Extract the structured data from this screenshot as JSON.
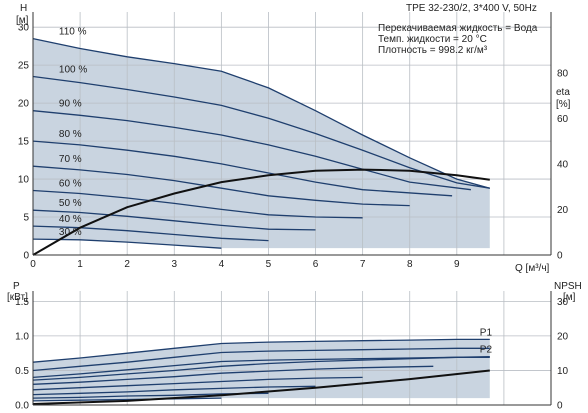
{
  "header": {
    "title": "TPE 32-230/2, 3*400 V, 50Hz",
    "info": [
      "Перекачиваемая жидкость = Вода",
      "Темп. жидкости = 20 °C",
      "Плотность = 998.2 кг/м³"
    ]
  },
  "axes": {
    "top_left_symbol": "H",
    "top_left_unit": "[м]",
    "top_right_symbol": "eta",
    "top_right_unit": "[%]",
    "x_label": "Q [м³/ч]",
    "bottom_left_symbol": "P",
    "bottom_left_unit": "[кВт]",
    "bottom_right_symbol": "NPSH",
    "bottom_right_unit": "[м]"
  },
  "chart_data": [
    {
      "type": "line",
      "panel": "head",
      "xlim": [
        0,
        11
      ],
      "ylim": [
        0,
        32
      ],
      "y2lim": [
        0,
        106.7
      ],
      "xticks": [
        "0",
        "1",
        "2",
        "3",
        "4",
        "5",
        "6",
        "7",
        "8",
        "9"
      ],
      "yticks": [
        "0",
        "5",
        "10",
        "15",
        "20",
        "25",
        "30"
      ],
      "y2ticks": [
        "0",
        "20",
        "40",
        "60",
        "80"
      ],
      "grid": true,
      "series": [
        {
          "name": "110 %",
          "x": [
            0,
            1,
            2,
            3,
            4,
            5,
            6,
            7,
            8,
            9,
            9.7
          ],
          "y": [
            28.5,
            27.2,
            26.1,
            25.2,
            24.2,
            22,
            19,
            15.8,
            12.8,
            10,
            8.8
          ]
        },
        {
          "name": "100 %",
          "x": [
            0,
            1,
            2,
            3,
            4,
            5,
            6,
            7,
            8,
            9,
            9.7
          ],
          "y": [
            23.5,
            22.7,
            21.8,
            20.8,
            19.7,
            18,
            16,
            13.8,
            11.5,
            9.5,
            8.8
          ]
        },
        {
          "name": "90 %",
          "x": [
            0,
            1,
            2,
            3,
            4,
            5,
            6,
            7,
            8,
            9.3
          ],
          "y": [
            19,
            18.4,
            17.7,
            16.8,
            15.8,
            14.5,
            13,
            11.3,
            9.6,
            8.6
          ]
        },
        {
          "name": "80 %",
          "x": [
            0,
            1,
            2,
            3,
            4,
            5,
            6,
            7,
            8.9
          ],
          "y": [
            15,
            14.5,
            13.8,
            13,
            12,
            10.8,
            9.6,
            8.6,
            7.8
          ]
        },
        {
          "name": "70 %",
          "x": [
            0,
            1,
            2,
            3,
            4,
            5,
            6,
            7,
            8
          ],
          "y": [
            11.7,
            11.2,
            10.6,
            9.8,
            8.8,
            7.8,
            7.2,
            6.7,
            6.5
          ]
        },
        {
          "name": "60 %",
          "x": [
            0,
            1,
            2,
            3,
            4,
            5,
            6,
            7
          ],
          "y": [
            8.5,
            8.1,
            7.5,
            6.8,
            6,
            5.3,
            5,
            4.9
          ]
        },
        {
          "name": "50 %",
          "x": [
            0,
            1,
            2,
            3,
            4,
            5,
            6
          ],
          "y": [
            5.9,
            5.6,
            5.1,
            4.5,
            3.9,
            3.4,
            3.3
          ]
        },
        {
          "name": "40 %",
          "x": [
            0,
            1,
            2,
            3,
            4,
            5
          ],
          "y": [
            3.8,
            3.6,
            3.2,
            2.7,
            2.2,
            1.9
          ]
        },
        {
          "name": "30 %",
          "x": [
            0,
            1,
            2,
            3,
            4
          ],
          "y": [
            2.1,
            2,
            1.7,
            1.3,
            0.9
          ]
        },
        {
          "name": "eta",
          "axis": "right",
          "x": [
            0,
            1,
            2,
            3,
            4,
            5,
            6,
            7,
            8,
            9,
            9.7
          ],
          "y": [
            0,
            12,
            21,
            27,
            32,
            35,
            37,
            37.5,
            37,
            35,
            33
          ]
        }
      ]
    },
    {
      "type": "line",
      "panel": "power",
      "xlim": [
        0,
        11
      ],
      "ylim": [
        0,
        1.65
      ],
      "y2lim": [
        0,
        33
      ],
      "yticks": [
        "0.0",
        "0.5",
        "1.0",
        "1.5"
      ],
      "y2ticks": [
        "0",
        "10",
        "20",
        "30"
      ],
      "grid": true,
      "series": [
        {
          "name": "P1",
          "x": [
            0,
            1,
            2,
            3,
            4,
            5,
            6,
            7,
            8,
            9,
            9.7
          ],
          "y": [
            0.62,
            0.68,
            0.75,
            0.82,
            0.89,
            0.91,
            0.92,
            0.93,
            0.94,
            0.95,
            0.95
          ]
        },
        {
          "x": [
            0,
            1,
            2,
            3,
            4,
            5,
            6,
            7,
            8,
            9,
            9.7
          ],
          "y": [
            0.5,
            0.56,
            0.62,
            0.69,
            0.76,
            0.78,
            0.79,
            0.8,
            0.81,
            0.82,
            0.82
          ]
        },
        {
          "x": [
            0,
            1,
            2,
            3,
            4,
            5,
            6,
            7,
            8,
            9,
            9.7
          ],
          "y": [
            0.4,
            0.45,
            0.51,
            0.57,
            0.63,
            0.65,
            0.66,
            0.67,
            0.68,
            0.69,
            0.69
          ]
        },
        {
          "name": "P2",
          "x": [
            0,
            1,
            2,
            3,
            4,
            5,
            6,
            7,
            8,
            9,
            9.7
          ],
          "y": [
            0.36,
            0.4,
            0.45,
            0.5,
            0.56,
            0.6,
            0.63,
            0.65,
            0.67,
            0.69,
            0.7
          ]
        },
        {
          "x": [
            0,
            1,
            2,
            3,
            4,
            5,
            6,
            7,
            8.5
          ],
          "y": [
            0.3,
            0.33,
            0.37,
            0.41,
            0.46,
            0.49,
            0.52,
            0.54,
            0.56
          ]
        },
        {
          "x": [
            0,
            1,
            2,
            3,
            4,
            5,
            6,
            7
          ],
          "y": [
            0.22,
            0.25,
            0.28,
            0.31,
            0.34,
            0.37,
            0.39,
            0.4
          ]
        },
        {
          "x": [
            0,
            1,
            2,
            3,
            4,
            5,
            6
          ],
          "y": [
            0.15,
            0.17,
            0.19,
            0.22,
            0.24,
            0.26,
            0.27
          ]
        },
        {
          "x": [
            0,
            1,
            2,
            3,
            4,
            5
          ],
          "y": [
            0.1,
            0.11,
            0.13,
            0.14,
            0.16,
            0.17
          ]
        },
        {
          "x": [
            0,
            1,
            2,
            3,
            4
          ],
          "y": [
            0.06,
            0.07,
            0.08,
            0.09,
            0.1
          ]
        },
        {
          "name": "NPSH",
          "axis": "right",
          "x": [
            0,
            2,
            4,
            6,
            8,
            9.7
          ],
          "y": [
            0.3,
            1.2,
            2.8,
            5,
            7.5,
            10
          ]
        }
      ]
    }
  ],
  "colors": {
    "curve": "#1f3f6e",
    "area": "#c9d4e0",
    "grid": "#b9bec4",
    "eta": "#111111"
  }
}
